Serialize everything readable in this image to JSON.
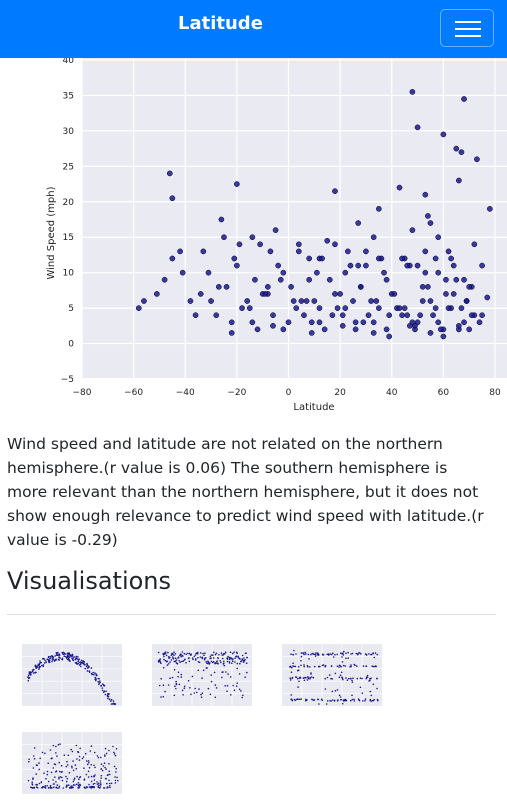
{
  "navbar": {
    "brand": "Latitude",
    "toggler_icon": "hamburger-menu-icon",
    "background_color": "#007bff"
  },
  "chart_data": {
    "type": "scatter",
    "xlabel": "Latitude",
    "ylabel": "Wind Speed (mph)",
    "xlim": [
      -80,
      80
    ],
    "ylim": [
      -5,
      40
    ],
    "x_ticks": [
      -80,
      -60,
      -40,
      -20,
      0,
      20,
      40,
      60,
      80
    ],
    "y_ticks": [
      -5,
      0,
      5,
      10,
      15,
      20,
      25,
      30,
      35,
      40
    ],
    "grid": true,
    "plot_background": "#eaeaf2",
    "marker_color": "#1a1a8c",
    "x": [
      48,
      68,
      50,
      60,
      65,
      67,
      -46,
      73,
      -20,
      18,
      43,
      35,
      53,
      66,
      78,
      -45,
      27,
      54,
      55,
      -26,
      -14,
      -5,
      4,
      15,
      33,
      48,
      58,
      72,
      -33,
      12,
      30,
      45,
      62,
      75,
      -2,
      8,
      -8,
      22,
      38,
      52,
      68,
      -41,
      -10,
      5,
      18,
      28,
      40,
      55,
      64,
      71,
      -51,
      -30,
      -18,
      2,
      12,
      25,
      35,
      46,
      57,
      69,
      -58,
      -36,
      -22,
      -6,
      9,
      21,
      33,
      44,
      50,
      60,
      77,
      -56,
      -28,
      -12,
      0,
      14,
      26,
      38,
      49,
      58,
      66,
      74,
      -45,
      -20,
      -3,
      11,
      24,
      36,
      47,
      53,
      61,
      70,
      -38,
      -15,
      6,
      19,
      31,
      42,
      51,
      63,
      72,
      -48,
      -24,
      -8,
      10,
      22,
      34,
      45,
      56,
      67,
      75,
      -34,
      -16,
      3,
      17,
      29,
      39,
      48,
      59,
      68,
      -27,
      -9,
      7,
      20,
      32,
      43,
      52,
      62,
      71,
      -42,
      -21,
      -4,
      13,
      27,
      37,
      50,
      58,
      65,
      -31,
      -13,
      1,
      16,
      28,
      41,
      54,
      61,
      69,
      -19,
      -7,
      8,
      23,
      35,
      46,
      57,
      64,
      -25,
      -11,
      4,
      18,
      30,
      44,
      53,
      63,
      -14,
      -2,
      12,
      26,
      39,
      49,
      60,
      70,
      -22,
      -6,
      9,
      21,
      33,
      47,
      55,
      66
    ],
    "y": [
      35.5,
      34.5,
      30.5,
      29.5,
      27.5,
      27,
      24,
      26,
      22.5,
      21.5,
      22,
      19,
      21,
      23,
      19,
      20.5,
      17,
      18,
      17,
      17.5,
      15,
      16,
      14,
      14.5,
      15,
      16,
      15,
      14,
      13,
      12,
      11,
      12,
      13,
      11,
      10,
      9,
      8,
      10,
      9,
      8,
      9,
      10,
      7,
      6,
      7,
      8,
      7,
      6,
      7,
      8,
      7,
      6,
      5,
      6,
      5,
      6,
      5,
      4,
      5,
      6,
      5,
      4,
      3,
      4,
      3,
      4,
      3,
      4,
      3,
      2,
      6.5,
      6,
      4,
      2,
      3,
      2,
      3,
      2,
      2.5,
      3,
      2,
      3,
      12,
      11,
      9,
      10,
      11,
      12,
      11,
      10,
      9,
      8,
      6,
      5,
      4,
      5,
      4,
      5,
      4,
      5,
      4,
      9,
      8,
      7,
      6,
      5,
      6,
      5,
      4,
      5,
      4,
      7,
      6,
      5,
      4,
      3,
      4,
      3,
      2,
      3,
      8,
      7,
      6,
      7,
      6,
      5,
      6,
      5,
      4,
      13,
      12,
      11,
      12,
      11,
      10,
      11,
      10,
      9,
      10,
      9,
      8,
      9,
      8,
      7,
      8,
      7,
      6,
      14,
      13,
      12,
      13,
      12,
      11,
      12,
      11,
      15,
      14,
      13,
      14,
      13,
      12,
      13,
      12,
      3,
      2,
      3,
      2,
      1,
      2,
      1,
      2,
      1.5,
      2.5,
      1.5,
      2.5,
      1.5,
      2.5,
      1.5,
      2.5
    ]
  },
  "analysis": {
    "paragraph": "Wind speed and latitude are not related on the northern hemisphere.(r value is 0.06) The southern hemisphere is more relevant than the northern hemisphere, but it does not show enough relevance to predict wind speed with latitude.(r value is -0.29)"
  },
  "visualisations": {
    "heading": "Visualisations",
    "thumbnails": [
      {
        "kind": "arch"
      },
      {
        "kind": "band-top"
      },
      {
        "kind": "bands"
      },
      {
        "kind": "wind"
      }
    ]
  }
}
